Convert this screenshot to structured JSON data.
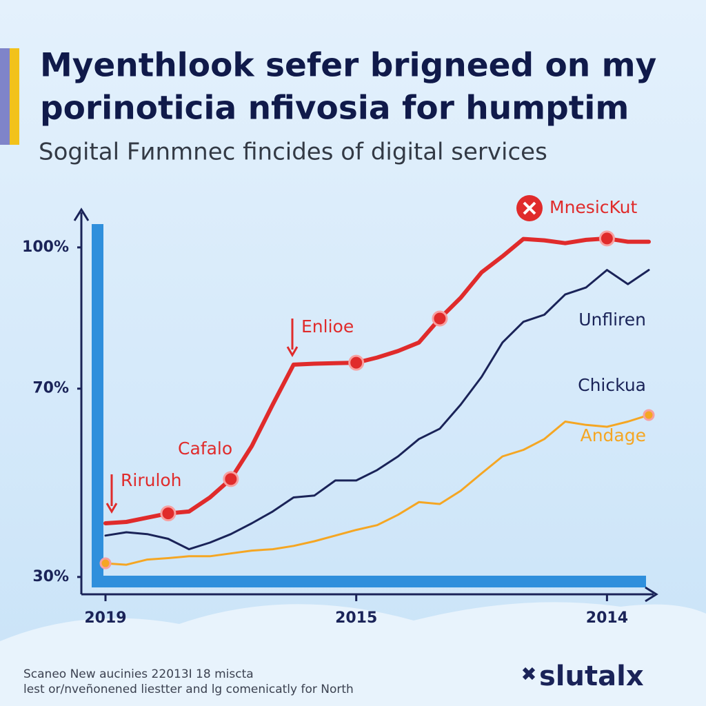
{
  "chart_data": {
    "type": "line",
    "title": [
      "Myenthlook sefer brigneed on my",
      "porinoticia nfivosia for humptim"
    ],
    "subtitle": "Sogital Fиnmnеc fincides of digital services",
    "categories": [
      "2019",
      null,
      null,
      null,
      null,
      null,
      null,
      null,
      null,
      null,
      null,
      null,
      "2015",
      null,
      null,
      null,
      null,
      null,
      null,
      null,
      null,
      null,
      null,
      null,
      "2014",
      null,
      null
    ],
    "ylim": [
      25,
      105
    ],
    "yticks": [
      {
        "value": 100,
        "label": "100%"
      },
      {
        "value": 70,
        "label": "70%"
      },
      {
        "value": 30,
        "label": "30%"
      }
    ],
    "series": [
      {
        "name": "MnesicKut",
        "color": "#e02b2b",
        "values": [
          41.4,
          41.7,
          42.6,
          43.5,
          43.9,
          46.9,
          50.8,
          57.8,
          66.6,
          75.1,
          75.3,
          75.4,
          75.5,
          76.6,
          78.0,
          79.8,
          84.9,
          89.3,
          94.7,
          98.1,
          101.8,
          101.5,
          100.9,
          101.6,
          101.9,
          101.2,
          101.2
        ]
      },
      {
        "name": "Unfliren",
        "color": "#1a2358",
        "values": [
          38.8,
          39.5,
          39.1,
          38.1,
          35.9,
          37.3,
          39.1,
          41.4,
          43.9,
          46.9,
          47.3,
          50.5,
          50.5,
          52.7,
          55.6,
          59.3,
          61.5,
          66.6,
          72.5,
          79.8,
          84.2,
          85.7,
          90.0,
          91.5,
          95.2,
          92.2,
          95.2
        ]
      },
      {
        "name": "Andage",
        "color": "#f5a623",
        "values": [
          32.9,
          32.6,
          33.7,
          34.0,
          34.4,
          34.4,
          35.0,
          35.6,
          35.9,
          36.6,
          37.6,
          38.8,
          40.0,
          41.0,
          43.2,
          45.9,
          45.5,
          48.3,
          52.0,
          55.6,
          57.0,
          59.3,
          63.0,
          62.3,
          61.9,
          63.0,
          64.4
        ]
      }
    ],
    "annotations": [
      "Enlioe",
      "Cafalo",
      "Riruloh",
      "Chickua"
    ],
    "footer": [
      "Scaneo New aucinies 22013I 18 miscta",
      "lest or/nveñonened liestter and lg comenicatly for North"
    ],
    "logo": "slutalx"
  }
}
